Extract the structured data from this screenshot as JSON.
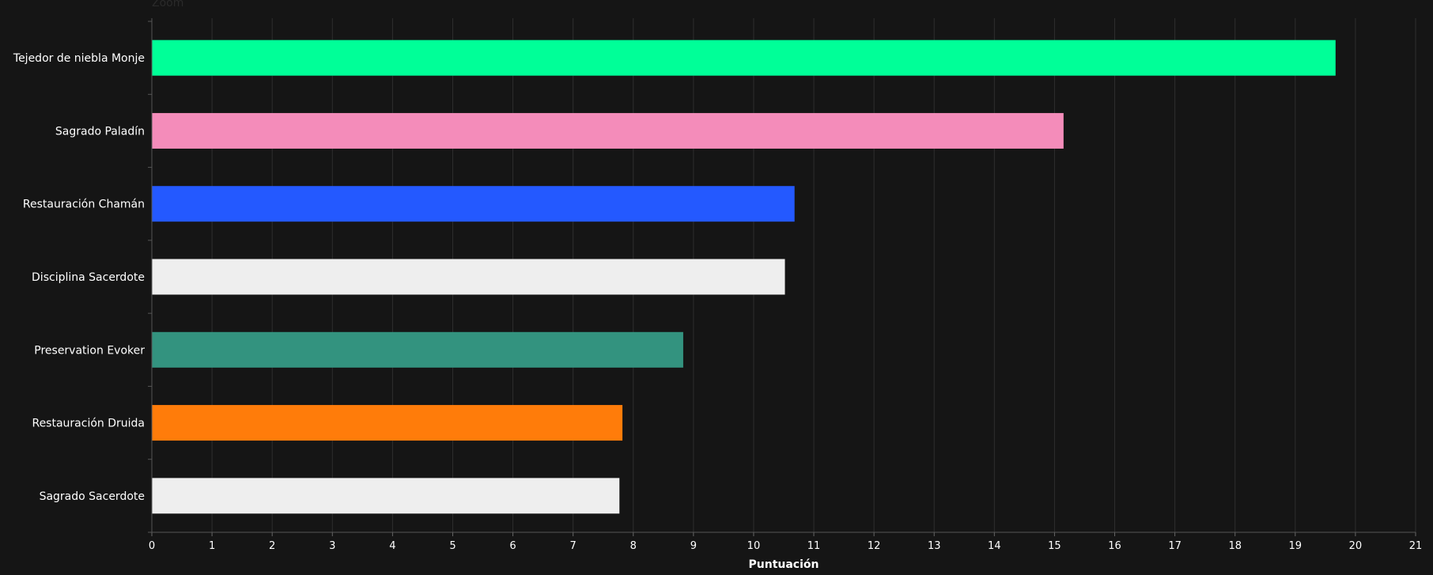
{
  "header": {
    "zoom_label": "Zoom"
  },
  "chart_data": {
    "type": "bar",
    "orientation": "horizontal",
    "categories": [
      "Tejedor de niebla Monje",
      "Sagrado Paladín",
      "Restauración Chamán",
      "Disciplina Sacerdote",
      "Preservation Evoker",
      "Restauración Druida",
      "Sagrado Sacerdote"
    ],
    "values": [
      19.67,
      15.15,
      10.68,
      10.52,
      8.83,
      7.82,
      7.77
    ],
    "colors": [
      "#00ff98",
      "#f48cba",
      "#2459ff",
      "#eeeeee",
      "#33937f",
      "#ff7c0a",
      "#eeeeee"
    ],
    "xlabel": "Puntuación",
    "ylabel": "",
    "xlim": [
      0,
      21
    ],
    "xticks": [
      "0",
      "1",
      "2",
      "3",
      "4",
      "5",
      "6",
      "7",
      "8",
      "9",
      "10",
      "11",
      "12",
      "13",
      "14",
      "15",
      "16",
      "17",
      "18",
      "19",
      "20",
      "21"
    ],
    "grid": "vertical",
    "background": "#151515",
    "grid_color": "#2e2e2e",
    "text_color": "#ffffff"
  }
}
